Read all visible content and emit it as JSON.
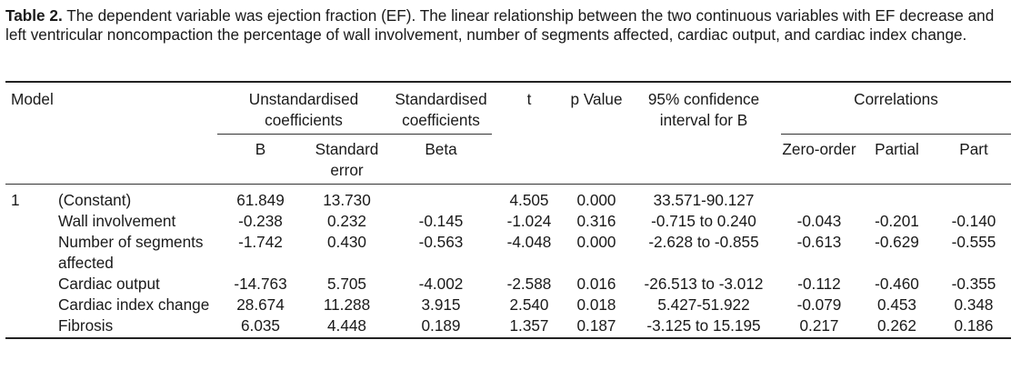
{
  "caption": {
    "label": "Table 2.",
    "text": " The dependent variable was ejection fraction (EF). The linear relationship between the two continuous variables with EF decrease and left ventricular noncompaction the percentage of wall involvement, number of segments affected, cardiac output, and cardiac index change."
  },
  "table": {
    "header": {
      "model": "Model",
      "unstd": "Unstandardised coefficients",
      "std": "Standardised coefficients",
      "t": "t",
      "p": "p Value",
      "ci": "95% confidence interval for B",
      "corr": "Correlations",
      "b": "B",
      "se": "Standard error",
      "beta": "Beta",
      "zero": "Zero-order",
      "partial": "Partial",
      "part": "Part"
    },
    "rows": [
      {
        "model": "1",
        "label": "(Constant)",
        "b": "61.849",
        "se": "13.730",
        "beta": "",
        "t": "4.505",
        "p": "0.000",
        "ci": "33.571-90.127",
        "zero": "",
        "partial": "",
        "part": ""
      },
      {
        "model": "",
        "label": "Wall involvement",
        "b": "-0.238",
        "se": "0.232",
        "beta": "-0.145",
        "t": "-1.024",
        "p": "0.316",
        "ci": "-0.715 to 0.240",
        "zero": "-0.043",
        "partial": "-0.201",
        "part": "-0.140"
      },
      {
        "model": "",
        "label": "Number of segments affected",
        "b": "-1.742",
        "se": "0.430",
        "beta": "-0.563",
        "t": "-4.048",
        "p": "0.000",
        "ci": "-2.628 to -0.855",
        "zero": "-0.613",
        "partial": "-0.629",
        "part": "-0.555"
      },
      {
        "model": "",
        "label": "Cardiac output",
        "b": "-14.763",
        "se": "5.705",
        "beta": "-4.002",
        "t": "-2.588",
        "p": "0.016",
        "ci": "-26.513 to -3.012",
        "zero": "-0.112",
        "partial": "-0.460",
        "part": "-0.355"
      },
      {
        "model": "",
        "label": "Cardiac index change",
        "b": "28.674",
        "se": "11.288",
        "beta": "3.915",
        "t": "2.540",
        "p": "0.018",
        "ci": "5.427-51.922",
        "zero": "-0.079",
        "partial": "0.453",
        "part": "0.348"
      },
      {
        "model": "",
        "label": "Fibrosis",
        "b": "6.035",
        "se": "4.448",
        "beta": "0.189",
        "t": "1.357",
        "p": "0.187",
        "ci": "-3.125 to 15.195",
        "zero": "0.217",
        "partial": "0.262",
        "part": "0.186"
      }
    ]
  }
}
